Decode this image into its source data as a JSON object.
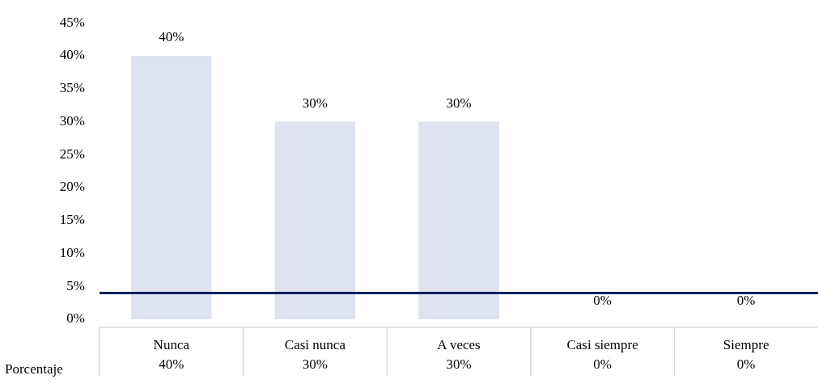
{
  "chart_data": {
    "type": "bar",
    "categories": [
      "Nunca",
      "Casi nunca",
      "A veces",
      "Casi siempre",
      "Siempre"
    ],
    "series": [
      {
        "name": "Porcentaje",
        "color": "#dde4ef",
        "values": [
          40,
          30,
          30,
          0,
          0
        ]
      }
    ],
    "ylim": [
      0,
      45
    ],
    "yticks": [
      {
        "value": 0,
        "label": "0%"
      },
      {
        "value": 5,
        "label": "5%"
      },
      {
        "value": 10,
        "label": "10%"
      },
      {
        "value": 15,
        "label": "15%"
      },
      {
        "value": 20,
        "label": "20%"
      },
      {
        "value": 25,
        "label": "25%"
      },
      {
        "value": 30,
        "label": "30%"
      },
      {
        "value": 35,
        "label": "35%"
      },
      {
        "value": 40,
        "label": "40%"
      },
      {
        "value": 45,
        "label": "45%"
      }
    ],
    "value_labels": [
      "40%",
      "30%",
      "30%",
      "0%",
      "0%"
    ],
    "ref_lines": [
      {
        "axis": "y",
        "value": 4,
        "color": "#002060"
      }
    ],
    "grid": false,
    "legend": false
  }
}
